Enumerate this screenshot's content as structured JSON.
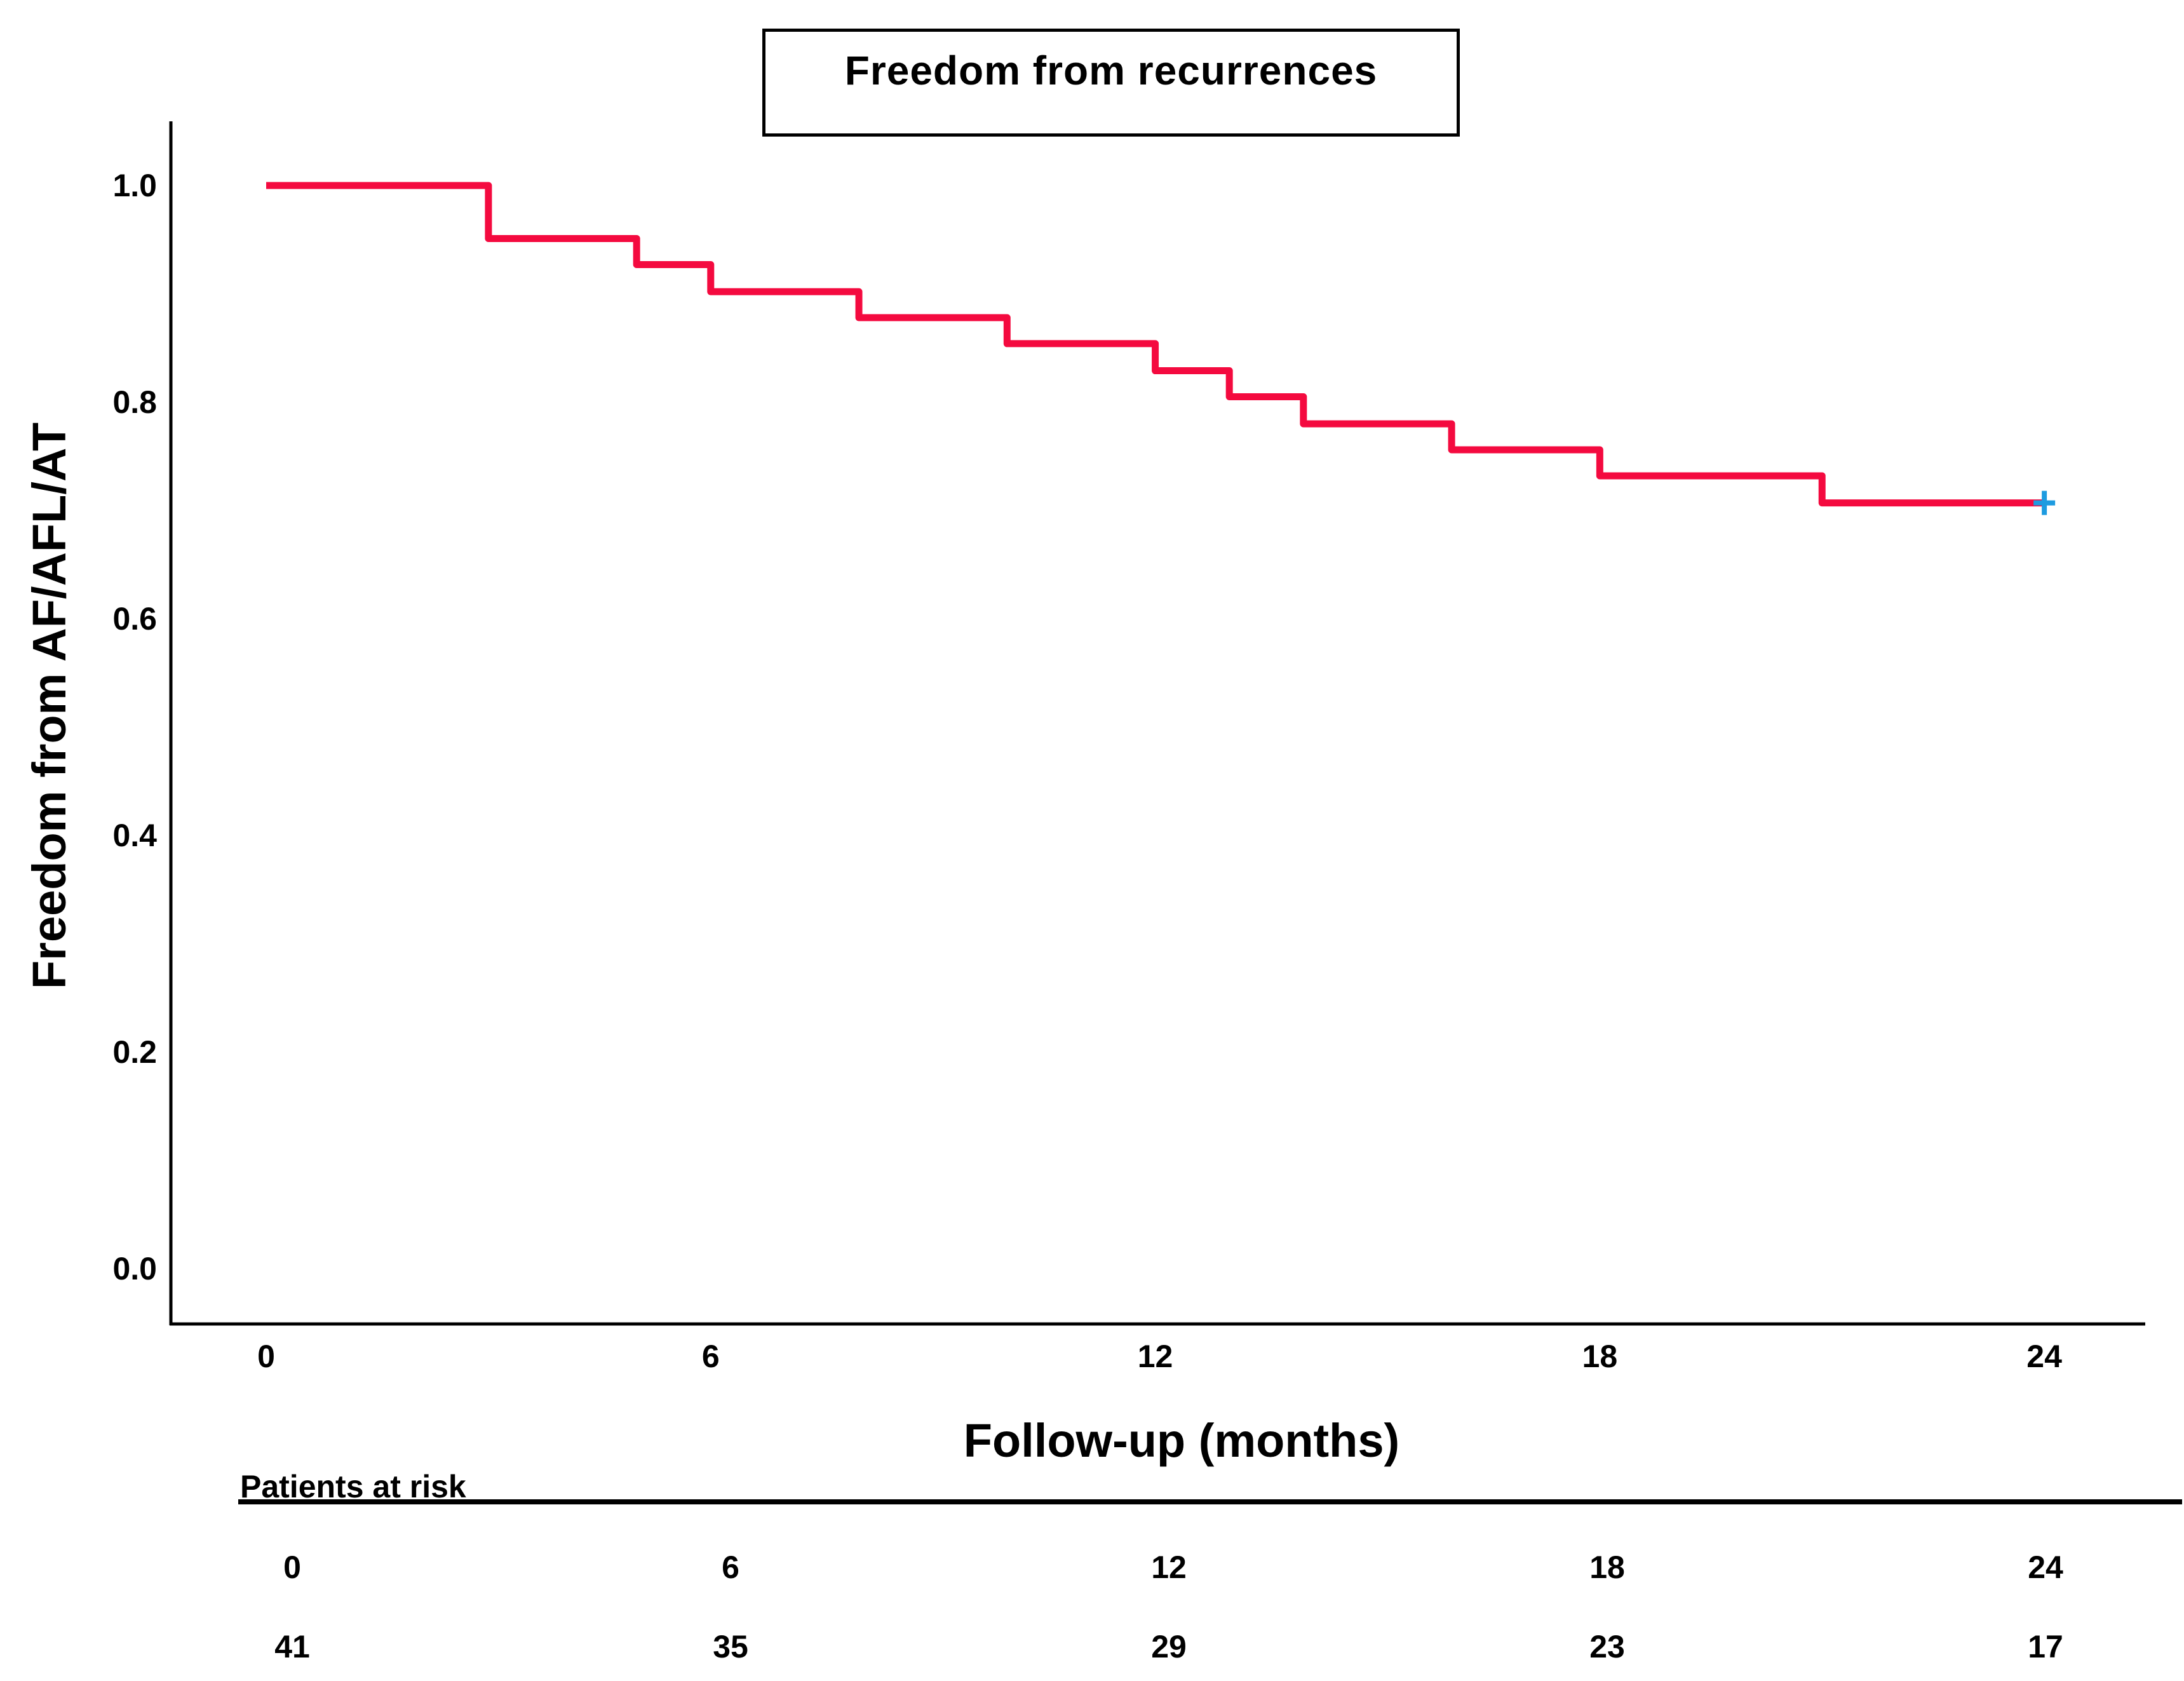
{
  "title": "Freedom from recurrences",
  "y_axis": {
    "label": "Freedom from AF/AFL/AT",
    "ticks": [
      {
        "label": "1.0",
        "value": 1.0
      },
      {
        "label": "0.8",
        "value": 0.8
      },
      {
        "label": "0.6",
        "value": 0.6
      },
      {
        "label": "0.4",
        "value": 0.4
      },
      {
        "label": "0.2",
        "value": 0.2
      },
      {
        "label": "0.0",
        "value": 0.0
      }
    ]
  },
  "x_axis": {
    "label": "Follow-up (months)",
    "ticks": [
      {
        "label": "0",
        "value": 0
      },
      {
        "label": "6",
        "value": 6
      },
      {
        "label": "12",
        "value": 12
      },
      {
        "label": "18",
        "value": 18
      },
      {
        "label": "24",
        "value": 24
      }
    ]
  },
  "at_risk": {
    "header": "Patients at risk",
    "rows": [
      {
        "month": "0",
        "count": "41"
      },
      {
        "month": "6",
        "count": "35"
      },
      {
        "month": "12",
        "count": "29"
      },
      {
        "month": "18",
        "count": "23"
      },
      {
        "month": "24",
        "count": "17"
      }
    ]
  },
  "colors": {
    "curve": "#F40A3F",
    "censor": "#1E9BE0",
    "axis": "#000000"
  },
  "chart_data": {
    "type": "line",
    "subtype": "kaplan-meier-step-curve",
    "title": "Freedom from recurrences",
    "xlabel": "Follow-up (months)",
    "ylabel": "Freedom from AF/AFL/AT",
    "xlim": [
      0,
      24
    ],
    "ylim": [
      0.0,
      1.0
    ],
    "grid": false,
    "legend": "none",
    "series": [
      {
        "name": "Freedom from AF/AFL/AT",
        "color": "#F40A3F",
        "steps": [
          {
            "time": 0,
            "survival": 1.0
          },
          {
            "time": 3,
            "survival": 0.951
          },
          {
            "time": 5,
            "survival": 0.927
          },
          {
            "time": 6,
            "survival": 0.902
          },
          {
            "time": 8,
            "survival": 0.878
          },
          {
            "time": 10,
            "survival": 0.854
          },
          {
            "time": 12,
            "survival": 0.829
          },
          {
            "time": 13,
            "survival": 0.805
          },
          {
            "time": 14,
            "survival": 0.78
          },
          {
            "time": 16,
            "survival": 0.756
          },
          {
            "time": 18,
            "survival": 0.732
          },
          {
            "time": 21,
            "survival": 0.707
          }
        ],
        "curve_end_time": 24,
        "censor_marks": [
          {
            "time": 24,
            "survival": 0.707
          }
        ]
      }
    ],
    "patients_at_risk": {
      "months": [
        0,
        6,
        12,
        18,
        24
      ],
      "counts": [
        41,
        35,
        29,
        23,
        17
      ]
    }
  }
}
